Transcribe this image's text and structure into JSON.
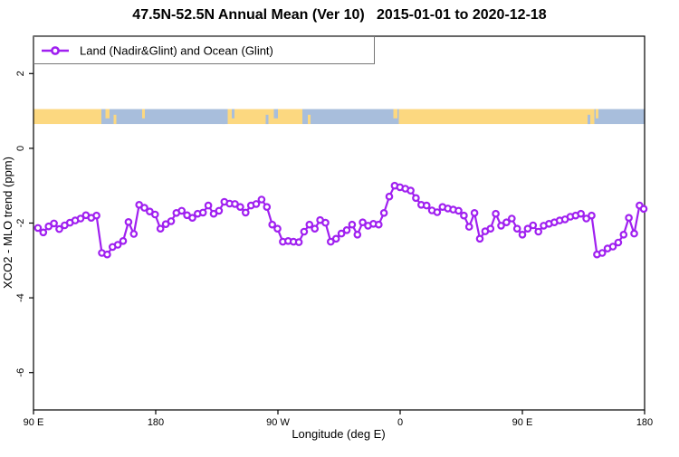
{
  "header": {
    "title": "47.5N-52.5N Annual Mean (Ver 10)   2015-01-01 to 2020-12-18"
  },
  "chart_data": {
    "type": "line",
    "title": "47.5N-52.5N Annual Mean (Ver 10)   2015-01-01 to 2020-12-18",
    "xlabel": "Longitude (deg E)",
    "ylabel": "XCO2 - MLO trend (ppm)",
    "legend_position": "topleft",
    "grid": false,
    "xlim_deg_along_axis": [
      90,
      540
    ],
    "ylim": [
      -7,
      3
    ],
    "x_ticks": [
      {
        "pos": 90,
        "label": "90 E"
      },
      {
        "pos": 180,
        "label": "180"
      },
      {
        "pos": 270,
        "label": "90 W"
      },
      {
        "pos": 360,
        "label": "0"
      },
      {
        "pos": 450,
        "label": "90 E"
      },
      {
        "pos": 540,
        "label": "180"
      }
    ],
    "y_ticks": [
      {
        "pos": 2,
        "label": "2"
      },
      {
        "pos": 0,
        "label": "0"
      },
      {
        "pos": -2,
        "label": "-2"
      },
      {
        "pos": -4,
        "label": "-4"
      },
      {
        "pos": -6,
        "label": "-6"
      }
    ],
    "series": [
      {
        "name": "Land (Nadir&Glint) and Ocean (Glint)",
        "color": "#A020F0",
        "marker": "open-circle",
        "x_start": 93.3,
        "x_step": 3.92,
        "values": [
          -2.13,
          -2.25,
          -2.09,
          -2.01,
          -2.16,
          -2.06,
          -1.99,
          -1.93,
          -1.88,
          -1.79,
          -1.86,
          -1.8,
          -2.8,
          -2.84,
          -2.64,
          -2.58,
          -2.48,
          -1.97,
          -2.29,
          -1.51,
          -1.59,
          -1.69,
          -1.77,
          -2.15,
          -2.03,
          -1.95,
          -1.73,
          -1.67,
          -1.79,
          -1.86,
          -1.75,
          -1.72,
          -1.53,
          -1.75,
          -1.67,
          -1.43,
          -1.48,
          -1.49,
          -1.57,
          -1.72,
          -1.53,
          -1.49,
          -1.37,
          -1.57,
          -2.04,
          -2.15,
          -2.5,
          -2.48,
          -2.5,
          -2.51,
          -2.23,
          -2.04,
          -2.15,
          -1.92,
          -1.99,
          -2.5,
          -2.42,
          -2.28,
          -2.19,
          -2.04,
          -2.31,
          -1.98,
          -2.07,
          -2.02,
          -2.04,
          -1.73,
          -1.29,
          -1.0,
          -1.04,
          -1.08,
          -1.13,
          -1.33,
          -1.51,
          -1.53,
          -1.66,
          -1.71,
          -1.57,
          -1.61,
          -1.64,
          -1.67,
          -1.8,
          -2.1,
          -1.73,
          -2.42,
          -2.22,
          -2.15,
          -1.75,
          -2.07,
          -1.98,
          -1.88,
          -2.15,
          -2.31,
          -2.15,
          -2.06,
          -2.23,
          -2.07,
          -2.02,
          -1.98,
          -1.93,
          -1.9,
          -1.83,
          -1.8,
          -1.75,
          -1.88,
          -1.8,
          -2.84,
          -2.8,
          -2.68,
          -2.63,
          -2.52,
          -2.31,
          -1.86,
          -2.28,
          -1.53,
          -1.62
        ]
      }
    ],
    "surface_type_band": {
      "description": "land/ocean strip drawn across the plot",
      "land_color": "#FCD880",
      "ocean_color": "#A8BEDC",
      "value_range": [
        0.65,
        1.05
      ],
      "segments": [
        {
          "from": 90,
          "to": 140,
          "type": "land"
        },
        {
          "from": 140,
          "to": 233,
          "type": "ocean"
        },
        {
          "from": 233,
          "to": 288,
          "type": "land"
        },
        {
          "from": 288,
          "to": 359,
          "type": "ocean"
        },
        {
          "from": 359,
          "to": 503,
          "type": "land"
        },
        {
          "from": 503,
          "to": 540,
          "type": "ocean"
        }
      ],
      "speckles": [
        {
          "from": 143,
          "to": 146,
          "type": "land"
        },
        {
          "from": 149,
          "to": 151,
          "type": "land"
        },
        {
          "from": 170,
          "to": 172,
          "type": "land"
        },
        {
          "from": 229,
          "to": 231,
          "type": "ocean"
        },
        {
          "from": 236,
          "to": 238,
          "type": "ocean"
        },
        {
          "from": 261,
          "to": 263,
          "type": "ocean"
        },
        {
          "from": 267,
          "to": 270,
          "type": "ocean"
        },
        {
          "from": 292,
          "to": 294,
          "type": "land"
        },
        {
          "from": 355,
          "to": 358,
          "type": "land"
        },
        {
          "from": 498,
          "to": 500,
          "type": "ocean"
        },
        {
          "from": 504,
          "to": 506,
          "type": "land"
        }
      ]
    }
  },
  "colors": {
    "line": "#A020F0",
    "frame": "#000000",
    "legend_box": "#777777"
  }
}
